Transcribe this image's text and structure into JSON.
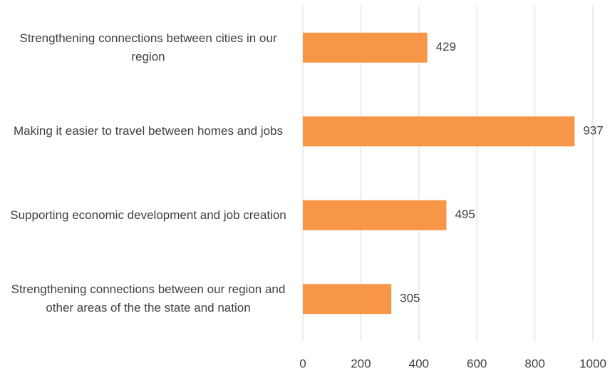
{
  "chart_data": {
    "type": "bar",
    "orientation": "horizontal",
    "categories": [
      "Strengthening connections between cities in our region",
      "Making it easier to travel between homes and jobs",
      "Supporting economic development and job creation",
      "Strengthening connections between our region and other areas of the the state and nation"
    ],
    "values": [
      429,
      937,
      495,
      305
    ],
    "color": "#f79646",
    "xlim": [
      0,
      1000
    ],
    "xticks": [
      0,
      200,
      400,
      600,
      800,
      1000
    ],
    "grid": true
  }
}
